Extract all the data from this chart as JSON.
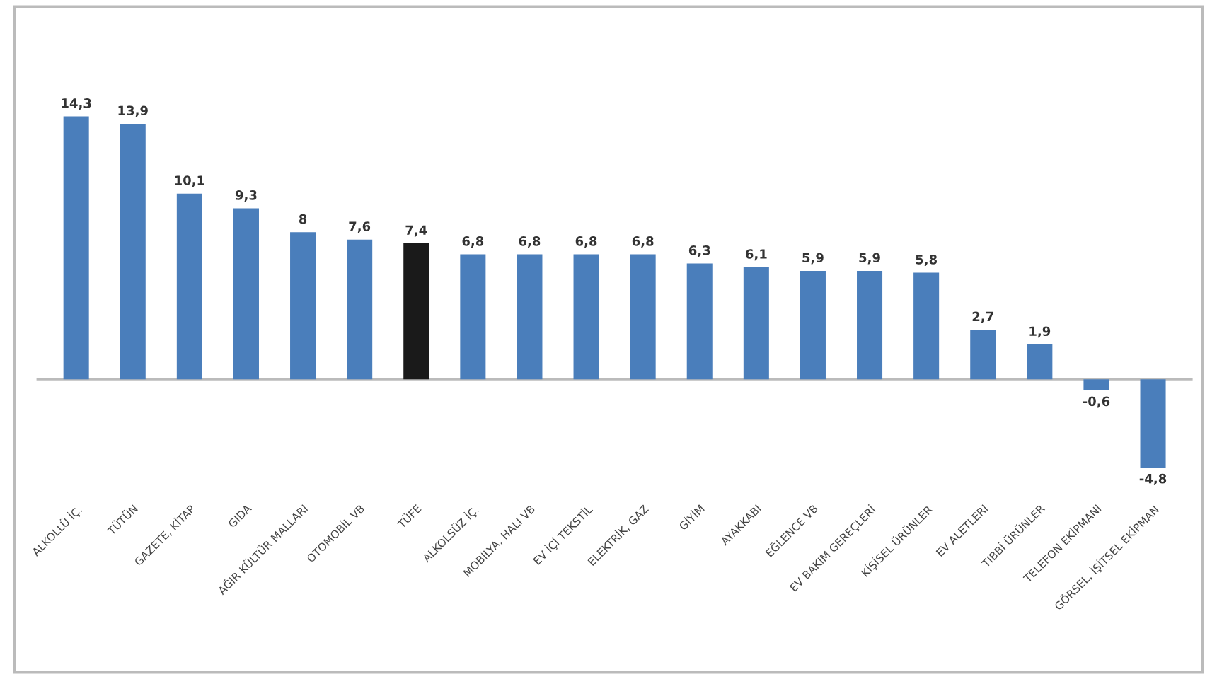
{
  "chart_data": {
    "type": "bar",
    "categories": [
      "ALKOLLÜ İÇ.",
      "TÜTÜN",
      "GAZETE, KİTAP",
      "GIDA",
      "AĞIR KÜLTÜR MALLARI",
      "OTOMOBİL VB",
      "TÜFE",
      "ALKOLSÜZ İÇ.",
      "MOBİLYA, HALI VB",
      "EV İÇİ TEKSTİL",
      "ELEKTRİK, GAZ",
      "GİYİM",
      "AYAKKABI",
      "EĞLENCE VB",
      "EV BAKIM GEREÇLERİ",
      "KİŞİSEL ÜRÜNLER",
      "EV ALETLERİ",
      "TIBBİ ÜRÜNLER",
      "TELEFON EKİPMANI",
      "GÖRSEL, İŞİTSEL EKİPMAN"
    ],
    "values": [
      14.3,
      13.9,
      10.1,
      9.3,
      8,
      7.6,
      7.4,
      6.8,
      6.8,
      6.8,
      6.8,
      6.3,
      6.1,
      5.9,
      5.9,
      5.8,
      2.7,
      1.9,
      -0.6,
      -4.8
    ],
    "colors": [
      "#4a7ebb",
      "#4a7ebb",
      "#4a7ebb",
      "#4a7ebb",
      "#4a7ebb",
      "#4a7ebb",
      "#1a1a1a",
      "#4a7ebb",
      "#4a7ebb",
      "#4a7ebb",
      "#4a7ebb",
      "#4a7ebb",
      "#4a7ebb",
      "#4a7ebb",
      "#4a7ebb",
      "#4a7ebb",
      "#4a7ebb",
      "#4a7ebb",
      "#4a7ebb",
      "#4a7ebb"
    ],
    "value_labels": [
      "14,3",
      "13,9",
      "10,1",
      "9,3",
      "8",
      "7,6",
      "7,4",
      "6,8",
      "6,8",
      "6,8",
      "6,8",
      "6,3",
      "6,1",
      "5,9",
      "5,9",
      "5,8",
      "2,7",
      "1,9",
      "-0,6",
      "-4,8"
    ]
  }
}
